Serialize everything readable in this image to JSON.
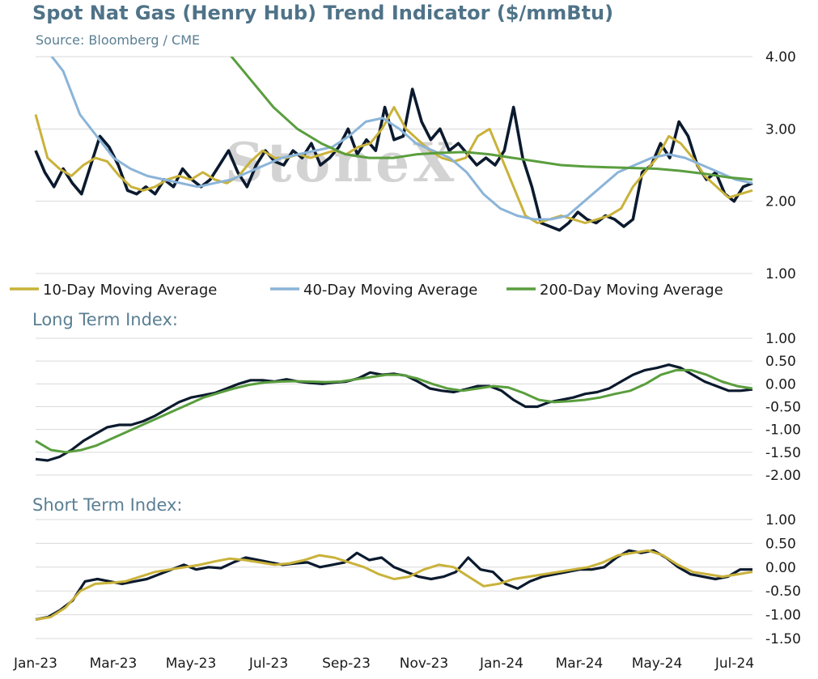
{
  "title": "Spot Nat Gas (Henry Hub) Trend Indicator ($/mmBtu)",
  "subtitle": "Source: Bloomberg / CME",
  "watermark": "StoneX",
  "long_title": "Long Term Index:",
  "short_title": "Short Term Index:",
  "x_ticks": [
    "Jan-23",
    "Mar-23",
    "May-23",
    "Jul-23",
    "Sep-23",
    "Nov-23",
    "Jan-24",
    "Mar-24",
    "May-24",
    "Jul-24"
  ],
  "chart_data": [
    {
      "type": "line",
      "title": "Spot Nat Gas (Henry Hub) Trend Indicator ($/mmBtu)",
      "ylim": [
        1.0,
        4.0
      ],
      "yticks": [
        "4.00",
        "3.00",
        "2.00",
        "1.00"
      ],
      "legend": [
        "10-Day Moving Average",
        "40-Day Moving Average",
        "200-Day Moving Average"
      ],
      "legend_position": "bottom",
      "grid": true,
      "series": [
        {
          "name": "",
          "color": "#0b1a2e",
          "values": [
            2.7,
            2.4,
            2.2,
            2.45,
            2.25,
            2.1,
            2.5,
            2.9,
            2.75,
            2.5,
            2.15,
            2.1,
            2.2,
            2.1,
            2.3,
            2.2,
            2.45,
            2.3,
            2.2,
            2.3,
            2.5,
            2.7,
            2.4,
            2.2,
            2.5,
            2.7,
            2.55,
            2.5,
            2.7,
            2.6,
            2.8,
            2.5,
            2.6,
            2.75,
            3.0,
            2.65,
            2.85,
            2.7,
            3.3,
            2.85,
            2.9,
            3.55,
            3.1,
            2.85,
            3.0,
            2.7,
            2.8,
            2.65,
            2.5,
            2.6,
            2.5,
            2.7,
            3.3,
            2.6,
            2.2,
            1.7,
            1.65,
            1.6,
            1.7,
            1.85,
            1.75,
            1.7,
            1.8,
            1.75,
            1.65,
            1.75,
            2.4,
            2.5,
            2.8,
            2.6,
            3.1,
            2.9,
            2.5,
            2.3,
            2.4,
            2.1,
            2.0,
            2.2,
            2.25
          ]
        },
        {
          "name": "10-Day Moving Average",
          "color": "#c9b23a",
          "values": [
            3.2,
            2.6,
            2.45,
            2.35,
            2.5,
            2.6,
            2.55,
            2.35,
            2.2,
            2.15,
            2.2,
            2.3,
            2.35,
            2.3,
            2.4,
            2.3,
            2.25,
            2.35,
            2.55,
            2.7,
            2.6,
            2.6,
            2.65,
            2.6,
            2.65,
            2.7,
            2.65,
            2.75,
            2.8,
            3.0,
            3.3,
            3.0,
            2.85,
            2.7,
            2.6,
            2.55,
            2.6,
            2.9,
            3.0,
            2.6,
            2.2,
            1.8,
            1.7,
            1.75,
            1.8,
            1.75,
            1.7,
            1.75,
            1.8,
            1.9,
            2.2,
            2.4,
            2.6,
            2.9,
            2.8,
            2.6,
            2.35,
            2.2,
            2.05,
            2.1,
            2.15
          ]
        },
        {
          "name": "40-Day Moving Average",
          "color": "#8bb4d8",
          "values": [
            4.1,
            3.8,
            3.2,
            2.9,
            2.6,
            2.45,
            2.35,
            2.3,
            2.25,
            2.2,
            2.25,
            2.3,
            2.4,
            2.5,
            2.6,
            2.65,
            2.7,
            2.75,
            2.9,
            3.1,
            3.15,
            3.0,
            2.8,
            2.7,
            2.6,
            2.4,
            2.1,
            1.9,
            1.8,
            1.75,
            1.75,
            1.8,
            2.0,
            2.2,
            2.4,
            2.5,
            2.6,
            2.65,
            2.6,
            2.5,
            2.4,
            2.3,
            2.25
          ]
        },
        {
          "name": "200-Day Moving Average",
          "color": "#5a9e3e",
          "values": [
            4.1,
            3.7,
            3.3,
            3.0,
            2.8,
            2.65,
            2.6,
            2.6,
            2.65,
            2.67,
            2.68,
            2.65,
            2.6,
            2.55,
            2.5,
            2.48,
            2.47,
            2.46,
            2.45,
            2.42,
            2.38,
            2.33,
            2.3
          ]
        }
      ]
    },
    {
      "type": "line",
      "title": "Long Term Index:",
      "ylim": [
        -2.0,
        1.0
      ],
      "yticks": [
        "1.00",
        "0.50",
        "0.00",
        "-0.50",
        "-1.00",
        "-1.50",
        "-2.00"
      ],
      "grid": true,
      "series": [
        {
          "name": "",
          "color": "#0b1a2e",
          "values": [
            -1.65,
            -1.68,
            -1.6,
            -1.45,
            -1.25,
            -1.1,
            -0.95,
            -0.9,
            -0.9,
            -0.82,
            -0.7,
            -0.55,
            -0.4,
            -0.3,
            -0.25,
            -0.2,
            -0.1,
            0.0,
            0.08,
            0.08,
            0.05,
            0.1,
            0.05,
            0.02,
            0.0,
            0.03,
            0.05,
            0.12,
            0.25,
            0.2,
            0.22,
            0.18,
            0.05,
            -0.1,
            -0.15,
            -0.18,
            -0.12,
            -0.05,
            -0.05,
            -0.15,
            -0.35,
            -0.5,
            -0.5,
            -0.4,
            -0.35,
            -0.3,
            -0.22,
            -0.18,
            -0.1,
            0.05,
            0.2,
            0.3,
            0.35,
            0.42,
            0.35,
            0.2,
            0.05,
            -0.05,
            -0.15,
            -0.15,
            -0.12
          ]
        },
        {
          "name": "",
          "color": "#5a9e3e",
          "values": [
            -1.25,
            -1.45,
            -1.5,
            -1.45,
            -1.35,
            -1.2,
            -1.05,
            -0.9,
            -0.75,
            -0.6,
            -0.45,
            -0.3,
            -0.2,
            -0.1,
            -0.02,
            0.03,
            0.05,
            0.06,
            0.05,
            0.04,
            0.05,
            0.1,
            0.15,
            0.2,
            0.2,
            0.12,
            0.0,
            -0.1,
            -0.15,
            -0.1,
            -0.05,
            -0.08,
            -0.2,
            -0.35,
            -0.4,
            -0.38,
            -0.35,
            -0.3,
            -0.22,
            -0.15,
            0.0,
            0.2,
            0.3,
            0.3,
            0.2,
            0.05,
            -0.05,
            -0.1
          ]
        }
      ]
    },
    {
      "type": "line",
      "title": "Short Term Index:",
      "ylim": [
        -1.5,
        1.0
      ],
      "yticks": [
        "1.00",
        "0.50",
        "0.00",
        "-0.50",
        "-1.00",
        "-1.50"
      ],
      "grid": true,
      "series": [
        {
          "name": "",
          "color": "#0b1a2e",
          "values": [
            -1.1,
            -1.05,
            -0.9,
            -0.7,
            -0.3,
            -0.25,
            -0.3,
            -0.35,
            -0.3,
            -0.25,
            -0.15,
            -0.05,
            0.05,
            -0.05,
            0.0,
            -0.02,
            0.1,
            0.2,
            0.15,
            0.1,
            0.05,
            0.08,
            0.1,
            0.0,
            0.05,
            0.1,
            0.3,
            0.15,
            0.2,
            0.0,
            -0.1,
            -0.2,
            -0.25,
            -0.2,
            -0.1,
            0.2,
            -0.05,
            -0.1,
            -0.35,
            -0.45,
            -0.3,
            -0.2,
            -0.15,
            -0.1,
            -0.05,
            -0.05,
            0.0,
            0.2,
            0.35,
            0.3,
            0.35,
            0.2,
            0.0,
            -0.15,
            -0.2,
            -0.25,
            -0.2,
            -0.05,
            -0.05
          ]
        },
        {
          "name": "",
          "color": "#c9b23a",
          "values": [
            -1.1,
            -1.05,
            -0.85,
            -0.5,
            -0.35,
            -0.33,
            -0.3,
            -0.2,
            -0.1,
            -0.05,
            0.0,
            0.05,
            0.12,
            0.18,
            0.15,
            0.1,
            0.05,
            0.08,
            0.15,
            0.25,
            0.2,
            0.1,
            0.0,
            -0.15,
            -0.25,
            -0.2,
            -0.05,
            0.05,
            0.0,
            -0.2,
            -0.4,
            -0.35,
            -0.25,
            -0.2,
            -0.15,
            -0.1,
            -0.05,
            0.0,
            0.1,
            0.25,
            0.3,
            0.35,
            0.25,
            0.05,
            -0.1,
            -0.15,
            -0.2,
            -0.15,
            -0.1
          ]
        }
      ]
    }
  ]
}
